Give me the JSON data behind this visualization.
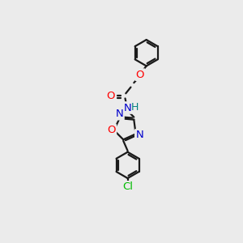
{
  "background_color": "#ebebeb",
  "bond_color": "#1a1a1a",
  "atom_colors": {
    "O": "#ff0000",
    "N": "#0000cc",
    "Cl": "#00bb00",
    "C": "#1a1a1a",
    "H": "#008080"
  },
  "figsize": [
    3.0,
    3.0
  ],
  "dpi": 100
}
